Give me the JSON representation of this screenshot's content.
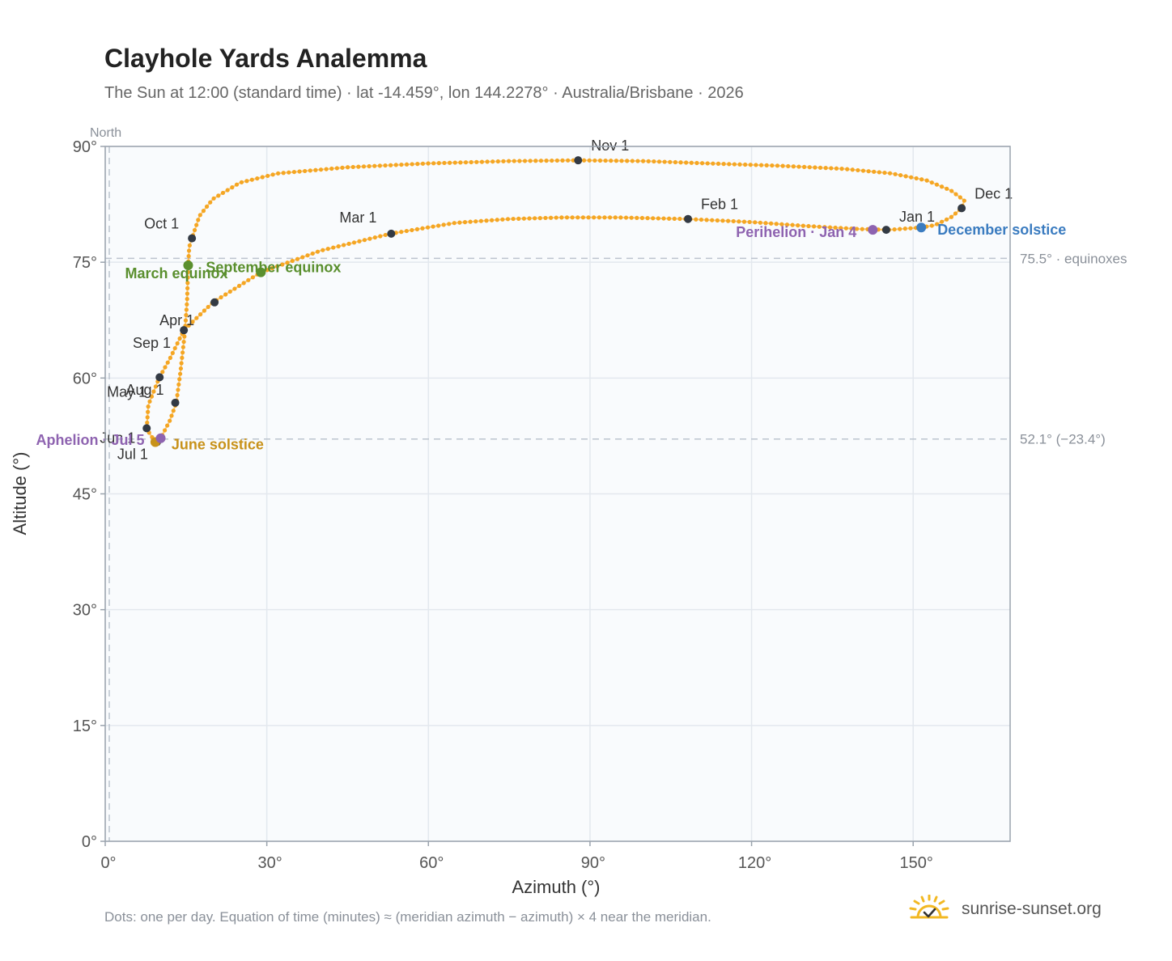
{
  "header": {
    "title": "Clayhole Yards Analemma",
    "subtitle": "The Sun at 12:00 (standard time) · lat -14.459°, lon 144.2278° · Australia/Brisbane · 2026"
  },
  "footer": {
    "note": "Dots: one per day. Equation of time (minutes) ≈ (meridian azimuth − azimuth) × 4 near the meridian.",
    "brand": "sunrise-sunset.org"
  },
  "colors": {
    "path": "#f5a623",
    "month_marker": "#333a44",
    "equinox": "#5a8f2e",
    "june_solstice": "#c8921a",
    "december_solstice": "#3b7cc0",
    "aphelion_perihelion": "#8e63b0",
    "grid": "#e3e8ee",
    "plot_bg": "#f9fbfd",
    "frame": "#9aa3ad",
    "reference_line": "#bcc4cf",
    "brand_sun": "#f2b822"
  },
  "icons": {
    "brand": "sun-check-icon"
  },
  "chart_data": {
    "type": "scatter",
    "xlabel": "Azimuth (°)",
    "ylabel": "Altitude (°)",
    "xlim": [
      0,
      168
    ],
    "ylim": [
      0,
      90
    ],
    "x_ticks": [
      0,
      30,
      60,
      90,
      120,
      150
    ],
    "x_tick_labels": [
      "0°",
      "30°",
      "60°",
      "90°",
      "120°",
      "150°"
    ],
    "y_ticks": [
      0,
      15,
      30,
      45,
      60,
      75,
      90
    ],
    "y_tick_labels": [
      "0°",
      "15°",
      "30°",
      "45°",
      "60°",
      "75°",
      "90°"
    ],
    "grid": true,
    "north_marker": {
      "label": "North",
      "azimuth": 0
    },
    "reference_lines": [
      {
        "altitude": 75.5,
        "label": "75.5° · equinoxes"
      },
      {
        "altitude": 52.1,
        "label": "52.1° (−23.4°)"
      }
    ],
    "path_keypoints": [
      [
        151.5,
        79.5
      ],
      [
        145.5,
        79.2
      ],
      [
        140.0,
        79.3
      ],
      [
        130.0,
        79.7
      ],
      [
        120.0,
        80.2
      ],
      [
        108.0,
        80.6
      ],
      [
        95.0,
        80.8
      ],
      [
        85.0,
        80.8
      ],
      [
        75.0,
        80.6
      ],
      [
        65.0,
        80.1
      ],
      [
        53.0,
        78.7
      ],
      [
        40.0,
        76.5
      ],
      [
        28.9,
        73.7
      ],
      [
        20.0,
        69.8
      ],
      [
        14.6,
        66.2
      ],
      [
        12.0,
        62.5
      ],
      [
        10.0,
        60.0
      ],
      [
        8.0,
        56.5
      ],
      [
        7.7,
        53.4
      ],
      [
        9.3,
        51.7
      ],
      [
        10.3,
        52.2
      ],
      [
        12.0,
        54.5
      ],
      [
        13.2,
        56.8
      ],
      [
        14.0,
        61.0
      ],
      [
        14.8,
        66.0
      ],
      [
        15.2,
        70.0
      ],
      [
        15.4,
        74.6
      ],
      [
        15.6,
        77.0
      ],
      [
        16.1,
        78.1
      ],
      [
        17.5,
        81.0
      ],
      [
        20.0,
        83.2
      ],
      [
        25.0,
        85.3
      ],
      [
        32.0,
        86.5
      ],
      [
        45.0,
        87.3
      ],
      [
        60.0,
        87.8
      ],
      [
        75.0,
        88.1
      ],
      [
        87.8,
        88.2
      ],
      [
        100.0,
        88.1
      ],
      [
        112.0,
        87.8
      ],
      [
        125.0,
        87.5
      ],
      [
        137.0,
        87.1
      ],
      [
        146.0,
        86.5
      ],
      [
        152.5,
        85.6
      ],
      [
        157.0,
        84.3
      ],
      [
        159.5,
        83.0
      ],
      [
        159.0,
        82.0
      ],
      [
        157.0,
        80.8
      ],
      [
        154.0,
        79.8
      ],
      [
        151.5,
        79.5
      ]
    ],
    "month_markers": [
      {
        "label": "Jan 1",
        "azimuth": 145.0,
        "altitude": 79.2
      },
      {
        "label": "Feb 1",
        "azimuth": 108.2,
        "altitude": 80.6
      },
      {
        "label": "Mar 1",
        "azimuth": 53.1,
        "altitude": 78.7
      },
      {
        "label": "Apr 1",
        "azimuth": 14.6,
        "altitude": 66.2
      },
      {
        "label": "May 1",
        "azimuth": 10.1,
        "altitude": 60.1
      },
      {
        "label": "Jun 1",
        "azimuth": 7.7,
        "altitude": 53.5
      },
      {
        "label": "Jul 1",
        "azimuth": 9.6,
        "altitude": 51.7
      },
      {
        "label": "Aug 1",
        "azimuth": 13.0,
        "altitude": 56.8
      },
      {
        "label": "Sep 1",
        "azimuth": 20.3,
        "altitude": 69.8
      },
      {
        "label": "Oct 1",
        "azimuth": 16.1,
        "altitude": 78.1
      },
      {
        "label": "Nov 1",
        "azimuth": 87.8,
        "altitude": 88.2
      },
      {
        "label": "Dec 1",
        "azimuth": 159.0,
        "altitude": 82.0
      }
    ],
    "special_points": [
      {
        "label": "March equinox",
        "azimuth": 15.4,
        "altitude": 74.6,
        "color_key": "equinox"
      },
      {
        "label": "September equinox",
        "azimuth": 28.9,
        "altitude": 73.7,
        "color_key": "equinox"
      },
      {
        "label": "June solstice",
        "azimuth": 9.3,
        "altitude": 51.7,
        "color_key": "june_solstice"
      },
      {
        "label": "December solstice",
        "azimuth": 151.5,
        "altitude": 79.5,
        "color_key": "december_solstice"
      },
      {
        "label": "Aphelion · Jul 5",
        "azimuth": 10.3,
        "altitude": 52.2,
        "color_key": "aphelion_perihelion"
      },
      {
        "label": "Perihelion · Jan 4",
        "azimuth": 142.5,
        "altitude": 79.2,
        "color_key": "aphelion_perihelion"
      }
    ]
  }
}
